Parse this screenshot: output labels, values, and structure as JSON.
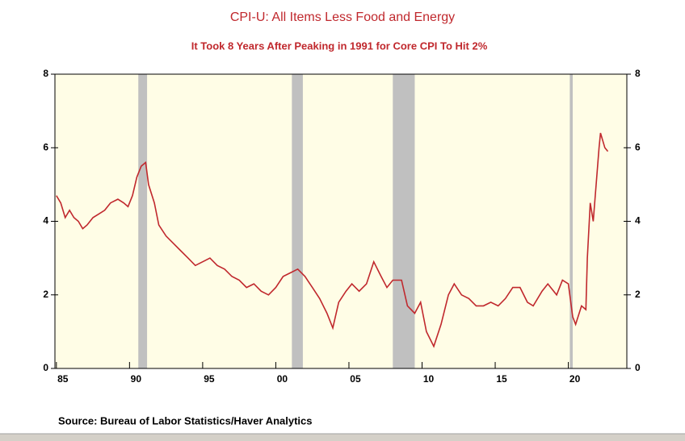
{
  "chart_data": {
    "type": "line",
    "title": "CPI-U: All Items Less Food and Energy",
    "subtitle": "It Took 8 Years After Peaking in 1991 for Core CPI To Hit 2%",
    "source": "Source:  Bureau of Labor Statistics/Haver Analytics",
    "xlim": [
      1984.9,
      2024
    ],
    "xticks": [
      {
        "value": 1985,
        "label": "85"
      },
      {
        "value": 1990,
        "label": "90"
      },
      {
        "value": 1995,
        "label": "95"
      },
      {
        "value": 2000,
        "label": "00"
      },
      {
        "value": 2005,
        "label": "05"
      },
      {
        "value": 2010,
        "label": "10"
      },
      {
        "value": 2015,
        "label": "15"
      },
      {
        "value": 2020,
        "label": "20"
      }
    ],
    "ylim": [
      0,
      8
    ],
    "yticks": [
      0,
      2,
      4,
      6,
      8
    ],
    "y2lim": [
      0,
      8
    ],
    "y2ticks": [
      0,
      2,
      4,
      6,
      8
    ],
    "recessions": [
      [
        1990.6,
        1991.2
      ],
      [
        2001.1,
        2001.85
      ],
      [
        2008.0,
        2009.5
      ],
      [
        2020.1,
        2020.3
      ]
    ],
    "recession_color": "#c0c0c0",
    "background": "#fffde6",
    "series": [
      {
        "color": "#c0282d",
        "x": [
          1985.0,
          1985.3,
          1985.6,
          1985.9,
          1986.2,
          1986.5,
          1986.8,
          1987.1,
          1987.5,
          1987.9,
          1988.3,
          1988.7,
          1989.2,
          1989.6,
          1989.9,
          1990.2,
          1990.5,
          1990.8,
          1991.1,
          1991.3,
          1991.7,
          1992.0,
          1992.5,
          1993.0,
          1993.5,
          1994.0,
          1994.5,
          1995.0,
          1995.5,
          1996.0,
          1996.5,
          1997.0,
          1997.5,
          1998.0,
          1998.5,
          1999.0,
          1999.5,
          2000.0,
          2000.5,
          2001.0,
          2001.5,
          2002.0,
          2002.5,
          2003.0,
          2003.5,
          2003.9,
          2004.3,
          2004.8,
          2005.2,
          2005.7,
          2006.2,
          2006.7,
          2007.2,
          2007.6,
          2008.0,
          2008.6,
          2009.0,
          2009.5,
          2009.9,
          2010.3,
          2010.8,
          2011.3,
          2011.8,
          2012.2,
          2012.7,
          2013.2,
          2013.7,
          2014.2,
          2014.7,
          2015.2,
          2015.7,
          2016.2,
          2016.7,
          2017.2,
          2017.6,
          2018.2,
          2018.6,
          2019.2,
          2019.6,
          2020.0,
          2020.3,
          2020.5,
          2020.9,
          2021.2,
          2021.3,
          2021.5,
          2021.7,
          2021.9,
          2022.1,
          2022.2,
          2022.5,
          2022.7
        ],
        "values": [
          4.7,
          4.5,
          4.1,
          4.3,
          4.1,
          4.0,
          3.8,
          3.9,
          4.1,
          4.2,
          4.3,
          4.5,
          4.6,
          4.5,
          4.4,
          4.7,
          5.2,
          5.5,
          5.6,
          5.0,
          4.5,
          3.9,
          3.6,
          3.4,
          3.2,
          3.0,
          2.8,
          2.9,
          3.0,
          2.8,
          2.7,
          2.5,
          2.4,
          2.2,
          2.3,
          2.1,
          2.0,
          2.2,
          2.5,
          2.6,
          2.7,
          2.5,
          2.2,
          1.9,
          1.5,
          1.1,
          1.8,
          2.1,
          2.3,
          2.1,
          2.3,
          2.9,
          2.5,
          2.2,
          2.4,
          2.4,
          1.7,
          1.5,
          1.8,
          1.0,
          0.6,
          1.2,
          2.0,
          2.3,
          2.0,
          1.9,
          1.7,
          1.7,
          1.8,
          1.7,
          1.9,
          2.2,
          2.2,
          1.8,
          1.7,
          2.1,
          2.3,
          2.0,
          2.4,
          2.3,
          1.4,
          1.2,
          1.7,
          1.6,
          3.0,
          4.5,
          4.0,
          5.0,
          6.0,
          6.4,
          6.0,
          5.9
        ]
      }
    ]
  }
}
